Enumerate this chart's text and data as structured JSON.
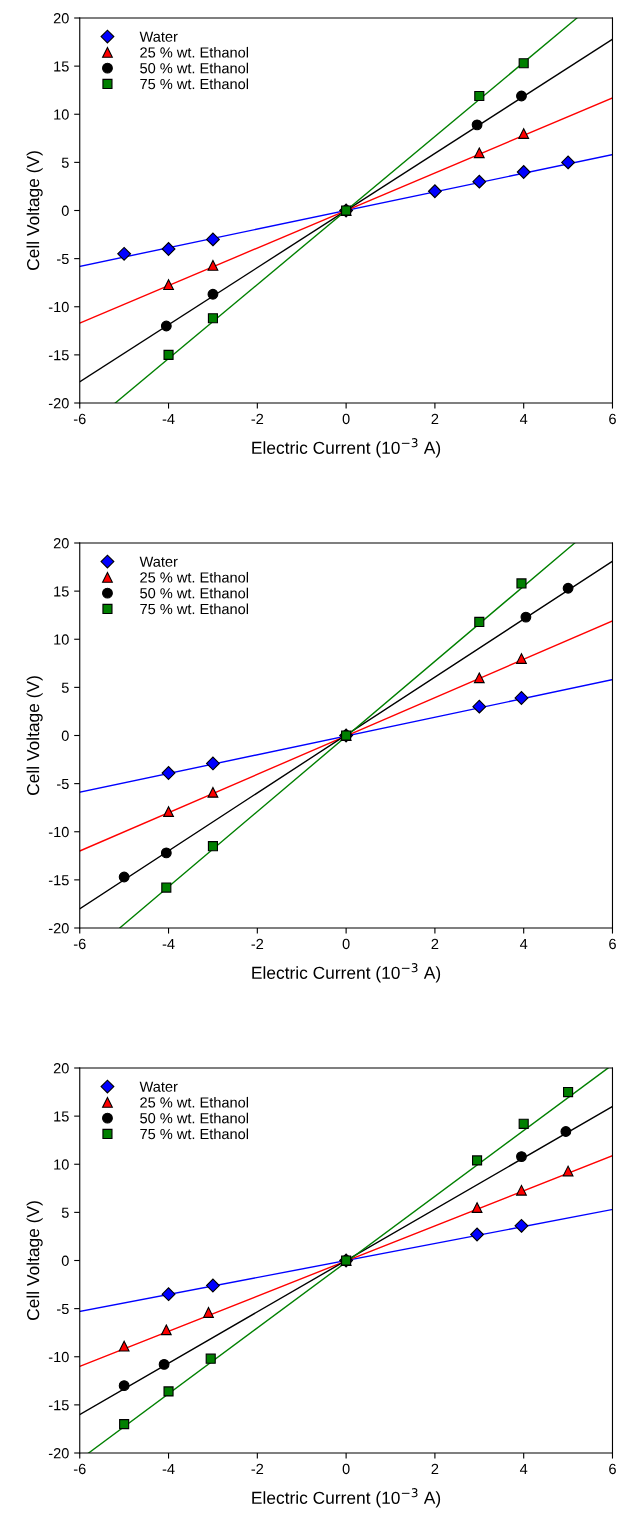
{
  "chart_data": [
    {
      "type": "scatter",
      "xlabel": "Electric Current (10$^{−3}$ A)",
      "ylabel": "Cell Voltage (V)",
      "xlim": [
        -6,
        6
      ],
      "ylim": [
        -20,
        20
      ],
      "xticks": [
        -6,
        -4,
        -2,
        0,
        2,
        4,
        6
      ],
      "yticks": [
        -20,
        -15,
        -10,
        -5,
        0,
        5,
        10,
        15,
        20
      ],
      "grid": false,
      "legend": "top left",
      "series": [
        {
          "name": "Water",
          "color": "#0000ff",
          "marker": "diamond",
          "x": [
            -5,
            -4,
            -3,
            0,
            2,
            3,
            4,
            5
          ],
          "values": [
            -4.5,
            -4,
            -3,
            0,
            2,
            3,
            4,
            5
          ]
        },
        {
          "name": "25 % wt. Ethanol",
          "color": "#ff0000",
          "marker": "triangle",
          "x": [
            -4,
            -3,
            0,
            3,
            4
          ],
          "values": [
            -7.7,
            -5.7,
            0,
            6,
            8
          ]
        },
        {
          "name": "50 % wt. Ethanol",
          "color": "#000000",
          "marker": "circle",
          "x": [
            -4.05,
            -3,
            0,
            2.95,
            3.95
          ],
          "values": [
            -12,
            -8.7,
            0,
            8.9,
            11.9
          ]
        },
        {
          "name": "75 % wt. Ethanol",
          "color": "#008000",
          "marker": "square",
          "x": [
            -4,
            -3,
            0,
            3,
            4
          ],
          "values": [
            -15,
            -11.2,
            0,
            11.9,
            15.3
          ]
        },
        {
          "type": "line",
          "color": "#0000ff",
          "x": [
            -6,
            6
          ],
          "values": [
            -5.8,
            5.8
          ]
        },
        {
          "type": "line",
          "color": "#ff0000",
          "x": [
            -6,
            6
          ],
          "values": [
            -11.7,
            11.7
          ]
        },
        {
          "type": "line",
          "color": "#000000",
          "x": [
            -6,
            6
          ],
          "values": [
            -17.8,
            17.8
          ]
        },
        {
          "type": "line",
          "color": "#008000",
          "x": [
            -5.2,
            5.2
          ],
          "values": [
            -20,
            20
          ]
        }
      ]
    },
    {
      "type": "scatter",
      "xlabel": "Electric Current (10$^{−3}$ A)",
      "ylabel": "Cell Voltage (V)",
      "xlim": [
        -6,
        6
      ],
      "ylim": [
        -20,
        20
      ],
      "xticks": [
        -6,
        -4,
        -2,
        0,
        2,
        4,
        6
      ],
      "yticks": [
        -20,
        -15,
        -10,
        -5,
        0,
        5,
        10,
        15,
        20
      ],
      "grid": false,
      "legend": "top left",
      "series": [
        {
          "name": "Water",
          "color": "#0000ff",
          "marker": "diamond",
          "x": [
            -4,
            -3,
            0,
            3,
            3.95
          ],
          "values": [
            -3.9,
            -2.9,
            0,
            3,
            3.9
          ]
        },
        {
          "name": "25 % wt. Ethanol",
          "color": "#ff0000",
          "marker": "triangle",
          "x": [
            -4,
            -3,
            0,
            3,
            3.95
          ],
          "values": [
            -7.9,
            -5.9,
            0,
            6,
            8
          ]
        },
        {
          "name": "50 % wt. Ethanol",
          "color": "#000000",
          "marker": "circle",
          "x": [
            -5,
            -4.05,
            0,
            4.05,
            5
          ],
          "values": [
            -14.7,
            -12.2,
            0,
            12.3,
            15.3
          ]
        },
        {
          "name": "75 % wt. Ethanol",
          "color": "#008000",
          "marker": "square",
          "x": [
            -4.05,
            -3,
            0,
            3,
            3.95
          ],
          "values": [
            -15.8,
            -11.5,
            0,
            11.8,
            15.8
          ]
        },
        {
          "type": "line",
          "color": "#0000ff",
          "x": [
            -6,
            6
          ],
          "values": [
            -5.9,
            5.8
          ]
        },
        {
          "type": "line",
          "color": "#ff0000",
          "x": [
            -6,
            6
          ],
          "values": [
            -12,
            11.9
          ]
        },
        {
          "type": "line",
          "color": "#000000",
          "x": [
            -6,
            6
          ],
          "values": [
            -18,
            18.1
          ]
        },
        {
          "type": "line",
          "color": "#008000",
          "x": [
            -5.1,
            5.15
          ],
          "values": [
            -20,
            20
          ]
        }
      ]
    },
    {
      "type": "scatter",
      "xlabel": "Electric Current (10$^{−3}$ A)",
      "ylabel": "Cell Voltage (V)",
      "xlim": [
        -6,
        6
      ],
      "ylim": [
        -20,
        20
      ],
      "xticks": [
        -6,
        -4,
        -2,
        0,
        2,
        4,
        6
      ],
      "yticks": [
        -20,
        -15,
        -10,
        -5,
        0,
        5,
        10,
        15,
        20
      ],
      "grid": false,
      "legend": "top left",
      "series": [
        {
          "name": "Water",
          "color": "#0000ff",
          "marker": "diamond",
          "x": [
            -4,
            -3,
            0,
            2.95,
            3.95
          ],
          "values": [
            -3.5,
            -2.6,
            0,
            2.7,
            3.6
          ]
        },
        {
          "name": "25 % wt. Ethanol",
          "color": "#ff0000",
          "marker": "triangle",
          "x": [
            -5,
            -4.05,
            -3.1,
            0,
            2.95,
            3.95,
            5
          ],
          "values": [
            -8.9,
            -7.2,
            -5.4,
            0,
            5.5,
            7.3,
            9.3
          ]
        },
        {
          "name": "50 % wt. Ethanol",
          "color": "#000000",
          "marker": "circle",
          "x": [
            -5,
            -4.1,
            0,
            3.95,
            4.95
          ],
          "values": [
            -13,
            -10.8,
            0,
            10.8,
            13.4
          ]
        },
        {
          "name": "75 % wt. Ethanol",
          "color": "#008000",
          "marker": "square",
          "x": [
            -5,
            -4,
            -3.05,
            0,
            2.95,
            4,
            5
          ],
          "values": [
            -17,
            -13.6,
            -10.2,
            0,
            10.4,
            14.2,
            17.5
          ]
        },
        {
          "type": "line",
          "color": "#0000ff",
          "x": [
            -6,
            6
          ],
          "values": [
            -5.3,
            5.3
          ]
        },
        {
          "type": "line",
          "color": "#ff0000",
          "x": [
            -6,
            6
          ],
          "values": [
            -11,
            10.9
          ]
        },
        {
          "type": "line",
          "color": "#000000",
          "x": [
            -6,
            6
          ],
          "values": [
            -16,
            16
          ]
        },
        {
          "type": "line",
          "color": "#008000",
          "x": [
            -5.8,
            5.9
          ],
          "values": [
            -20,
            20
          ]
        }
      ]
    }
  ]
}
